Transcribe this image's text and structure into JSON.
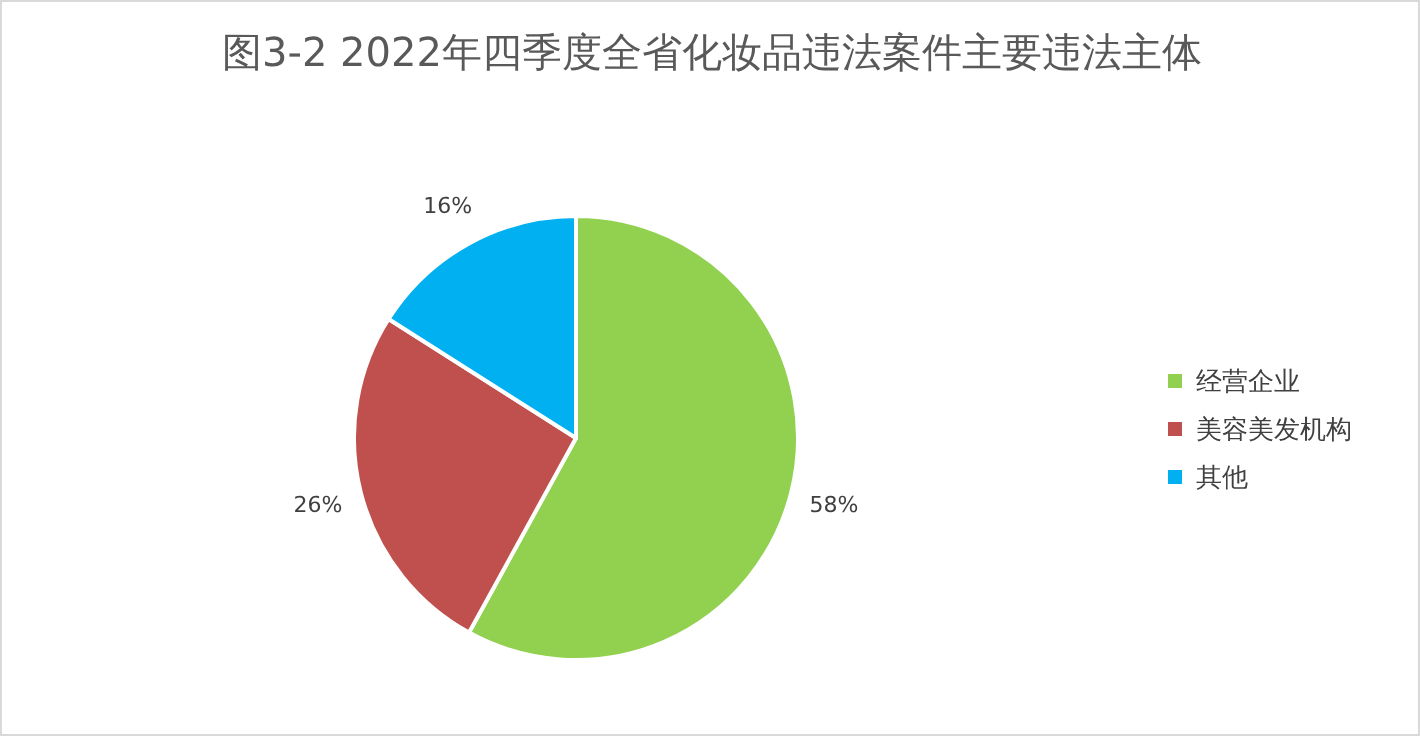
{
  "chart_data": {
    "type": "pie",
    "title": "图3-2 2022年四季度全省化妆品违法案件主要违法主体",
    "categories": [
      "经营企业",
      "美容美发机构",
      "其他"
    ],
    "values": [
      58,
      26,
      16
    ],
    "colors": [
      "#92d050",
      "#c0504d",
      "#00b0f0"
    ],
    "value_labels": [
      "58%",
      "26%",
      "16%"
    ],
    "legend": "right"
  }
}
